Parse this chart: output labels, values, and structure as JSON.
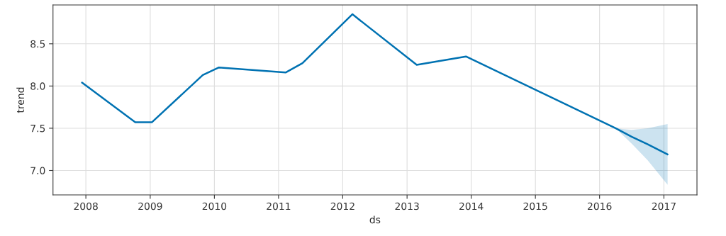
{
  "chart_data": {
    "type": "line",
    "xlabel": "ds",
    "ylabel": "trend",
    "x": [
      "2007-12-10",
      "2008-10-08",
      "2009-01-10",
      "2009-10-27",
      "2010-01-27",
      "2011-02-10",
      "2011-05-17",
      "2012-02-25",
      "2013-02-25",
      "2013-12-02",
      "2016-04-01",
      "2016-07-01",
      "2016-10-01",
      "2017-01-22"
    ],
    "series": [
      {
        "color": "#0072b2",
        "values": [
          8.04,
          7.57,
          7.57,
          8.13,
          8.22,
          8.16,
          8.27,
          8.85,
          8.25,
          8.35,
          7.5,
          7.4,
          7.31,
          7.19
        ],
        "lower": [
          null,
          null,
          null,
          null,
          null,
          null,
          null,
          null,
          null,
          null,
          7.5,
          7.32,
          7.12,
          6.83
        ],
        "upper": [
          null,
          null,
          null,
          null,
          null,
          null,
          null,
          null,
          null,
          null,
          7.5,
          7.48,
          7.5,
          7.55
        ]
      }
    ],
    "xlim": [
      "2007-06-28",
      "2017-07-08"
    ],
    "xticks": [
      "2008",
      "2009",
      "2010",
      "2011",
      "2012",
      "2013",
      "2014",
      "2015",
      "2016",
      "2017"
    ],
    "ylim": [
      6.71,
      8.96
    ],
    "yticks": [
      {
        "value": 7,
        "label": "7.0"
      },
      7.5,
      {
        "value": 8,
        "label": "8.0"
      },
      8.5
    ],
    "grid": true,
    "legend": false,
    "marker": "none",
    "line_style": "solid"
  }
}
